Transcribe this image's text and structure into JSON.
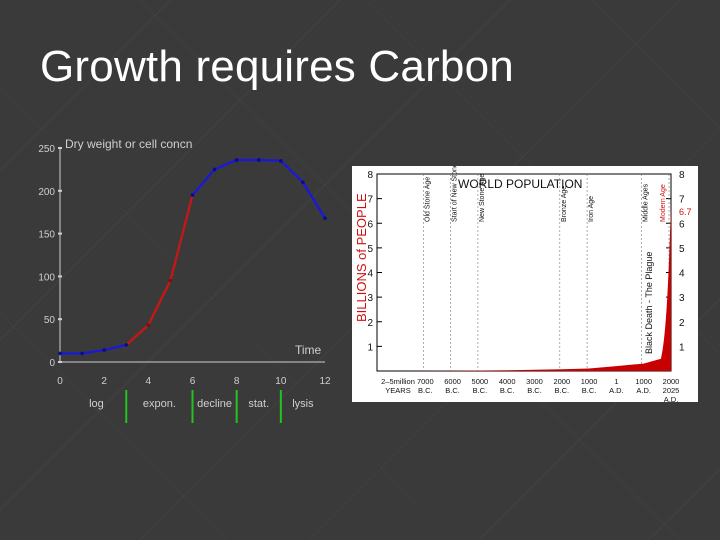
{
  "slide": {
    "title": "Growth requires Carbon"
  },
  "chart_data": [
    {
      "type": "line",
      "title": "Dry weight or cell concn",
      "xlabel": "Time",
      "ylabel": "",
      "xlim": [
        0,
        12
      ],
      "ylim": [
        0,
        250
      ],
      "xticks": [
        "0",
        "2",
        "4",
        "6",
        "8",
        "10",
        "12"
      ],
      "yticks": [
        "0",
        "50",
        "100",
        "150",
        "200",
        "250"
      ],
      "phases": [
        "log",
        "expon.",
        "decline",
        "stat.",
        "lysis"
      ],
      "phase_boundaries": [
        3,
        6,
        8,
        10
      ],
      "colors": {
        "lag_stationary": "#1a1ad6",
        "exponential": "#c21818",
        "phase_divider": "#22c322",
        "axis": "#cfcfcf"
      },
      "series": [
        {
          "x": [
            0,
            1,
            2,
            3,
            4,
            5,
            6,
            7,
            8,
            9,
            10,
            11,
            12
          ],
          "y": [
            10,
            10,
            14,
            20,
            43,
            95,
            195,
            225,
            236,
            236,
            235,
            210,
            168
          ]
        }
      ]
    },
    {
      "type": "area",
      "title": "WORLD POPULATION",
      "ylabel": "BILLIONS of PEOPLE",
      "xlabel": "YEARS",
      "ylim": [
        0,
        8
      ],
      "yticks_left": [
        "1",
        "2",
        "3",
        "4",
        "5",
        "6",
        "7",
        "8"
      ],
      "yticks_right": [
        "1",
        "2",
        "3",
        "4",
        "5",
        "6",
        "7",
        "8"
      ],
      "x_labels": [
        [
          "2–5million",
          "YEARS"
        ],
        [
          "7000",
          "B.C."
        ],
        [
          "6000",
          "B.C."
        ],
        [
          "5000",
          "B.C."
        ],
        [
          "4000",
          "B.C."
        ],
        [
          "3000",
          "B.C."
        ],
        [
          "2000",
          "B.C."
        ],
        [
          "1000",
          "B.C."
        ],
        [
          "1",
          "A.D."
        ],
        [
          "1000",
          "A.D."
        ],
        [
          "2000",
          "2025",
          "A.D."
        ]
      ],
      "eras": [
        "Old Stone Age",
        "Start of New Stone Age",
        "New Stone Age",
        "Bronze Age",
        "Iron Age",
        "Middle Ages",
        "Modern Age"
      ],
      "annotations": [
        "Black Death - The Plague",
        "6.7"
      ],
      "colors": {
        "fill": "#c80000",
        "text": "#000000",
        "accent": "#cc1111",
        "label_dark": "#222222"
      },
      "series": [
        {
          "x": [
            "2–5million",
            "7000",
            "6000",
            "5000",
            "4000",
            "3000",
            "2000",
            "1000",
            "1",
            "1000",
            "2000"
          ],
          "y": [
            0.002,
            0.005,
            0.01,
            0.02,
            0.03,
            0.05,
            0.07,
            0.1,
            0.2,
            0.3,
            6.7
          ]
        }
      ]
    }
  ]
}
